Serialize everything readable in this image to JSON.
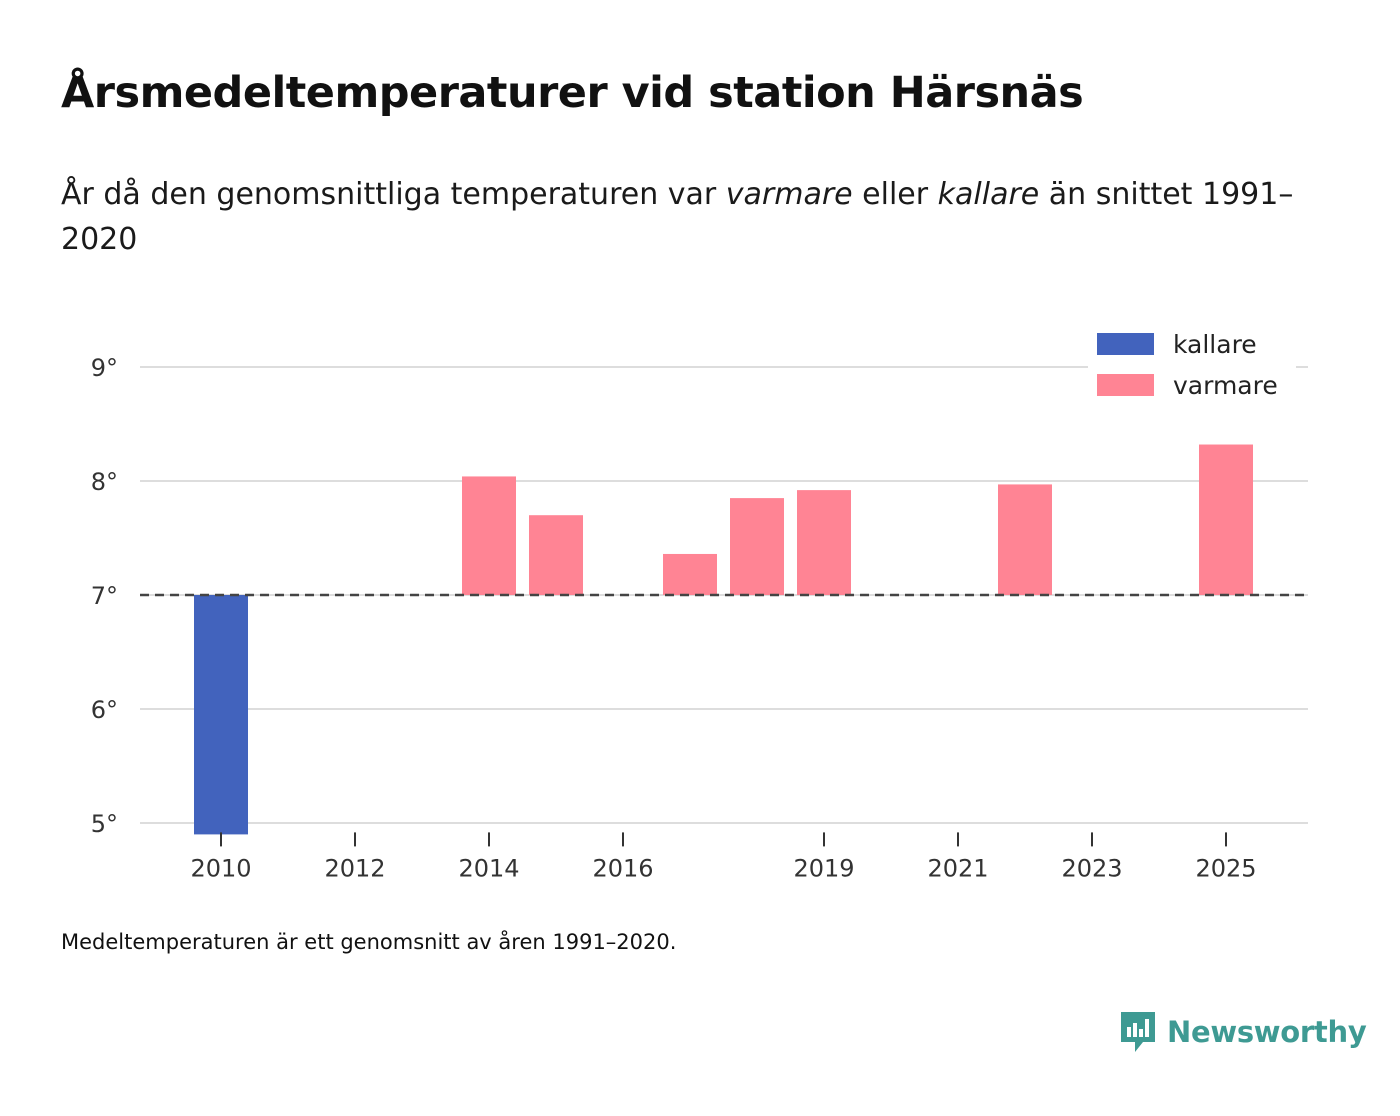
{
  "title": "Årsmedeltemperaturer vid station Härsnäs",
  "subtitle": {
    "part1": "År då den genomsnittliga temperaturen var ",
    "warm_word": "varmare",
    "part2": " eller ",
    "cold_word": "kallare",
    "part3": " än snittet 1991–2020"
  },
  "footnote": "Medeltemperaturen är ett genomsnitt av åren 1991–2020.",
  "brand": {
    "name": "Newsworthy",
    "icon": "newsworthy-logo-icon",
    "color": "#3e9a93"
  },
  "colors": {
    "kallare": "#4263bd",
    "varmare": "#ff8494",
    "baseline": "#444444",
    "grid": "#dddddd"
  },
  "chart_data": {
    "type": "bar",
    "title": "Årsmedeltemperaturer vid station Härsnäs",
    "xlabel": "",
    "ylabel": "",
    "baseline": 7.0,
    "baseline_style": "dashed",
    "ylim": [
      4.9,
      9.4
    ],
    "yticks": [
      5,
      6,
      7,
      8,
      9
    ],
    "ytick_labels": [
      "5°",
      "6°",
      "7°",
      "8°",
      "9°"
    ],
    "xlim": [
      2009.5,
      2026.2
    ],
    "xticks": [
      2010,
      2012,
      2014,
      2016,
      2019,
      2021,
      2023,
      2025
    ],
    "xtick_labels": [
      "2010",
      "2012",
      "2014",
      "2016",
      "2019",
      "2021",
      "2023",
      "2025"
    ],
    "grid": true,
    "legend_position": "top-right",
    "legend": [
      {
        "key": "kallare",
        "label": "kallare"
      },
      {
        "key": "varmare",
        "label": "varmare"
      }
    ],
    "bars": [
      {
        "year": 2010,
        "value": 4.9,
        "category": "kallare"
      },
      {
        "year": 2014,
        "value": 8.04,
        "category": "varmare"
      },
      {
        "year": 2015,
        "value": 7.7,
        "category": "varmare"
      },
      {
        "year": 2017,
        "value": 7.36,
        "category": "varmare"
      },
      {
        "year": 2018,
        "value": 7.85,
        "category": "varmare"
      },
      {
        "year": 2019,
        "value": 7.92,
        "category": "varmare"
      },
      {
        "year": 2022,
        "value": 7.97,
        "category": "varmare"
      },
      {
        "year": 2025,
        "value": 8.32,
        "category": "varmare"
      }
    ]
  }
}
